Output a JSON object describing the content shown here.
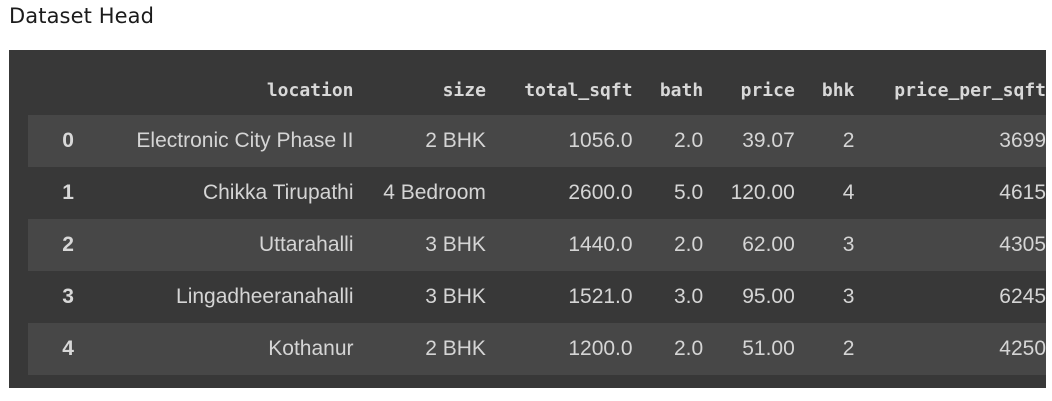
{
  "heading": "Dataset Head",
  "table": {
    "columns": [
      "",
      "location",
      "size",
      "total_sqft",
      "bath",
      "price",
      "bhk",
      "price_per_sqft"
    ],
    "rows": [
      {
        "index": "0",
        "location": "Electronic City Phase II",
        "size": "2 BHK",
        "total_sqft": "1056.0",
        "bath": "2.0",
        "price": "39.07",
        "bhk": "2",
        "price_per_sqft": "3699"
      },
      {
        "index": "1",
        "location": "Chikka Tirupathi",
        "size": "4 Bedroom",
        "total_sqft": "2600.0",
        "bath": "5.0",
        "price": "120.00",
        "bhk": "4",
        "price_per_sqft": "4615"
      },
      {
        "index": "2",
        "location": "Uttarahalli",
        "size": "3 BHK",
        "total_sqft": "1440.0",
        "bath": "2.0",
        "price": "62.00",
        "bhk": "3",
        "price_per_sqft": "4305"
      },
      {
        "index": "3",
        "location": "Lingadheeranahalli",
        "size": "3 BHK",
        "total_sqft": "1521.0",
        "bath": "3.0",
        "price": "95.00",
        "bhk": "3",
        "price_per_sqft": "6245"
      },
      {
        "index": "4",
        "location": "Kothanur",
        "size": "2 BHK",
        "total_sqft": "1200.0",
        "bath": "2.0",
        "price": "51.00",
        "bhk": "2",
        "price_per_sqft": "4250"
      }
    ]
  },
  "colors": {
    "panel_background": "#383838",
    "row_stripe": "#474747",
    "text": "#d5d5d5"
  }
}
